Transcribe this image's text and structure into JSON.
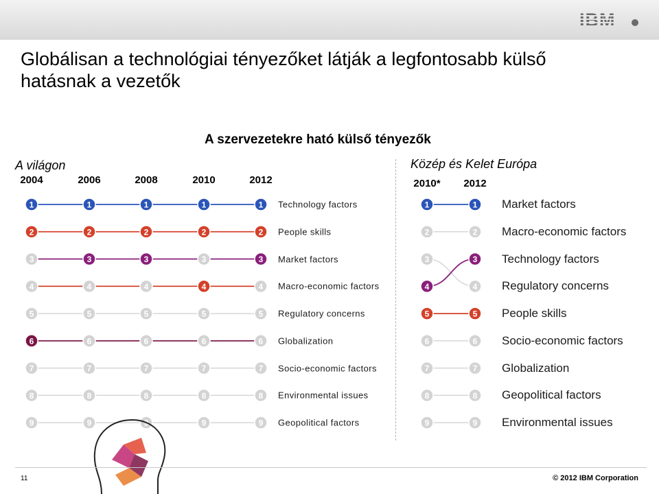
{
  "slide": {
    "title": "Globálisan a technológiai tényezőket látják a legfontosabb külső hatásnak a vezetők",
    "heading": "A szervezetekre ható külső tényezők",
    "page_number": "11",
    "copyright": "© 2012 IBM Corporation",
    "logo": "IBM"
  },
  "global": {
    "region": "A világon",
    "years": [
      "2004",
      "2006",
      "2008",
      "2010",
      "2012"
    ],
    "labels": [
      "Technology factors",
      "People skills",
      "Market factors",
      "Macro-economic factors",
      "Regulatory concerns",
      "Globalization",
      "Socio-economic factors",
      "Environmental issues",
      "Geopolitical factors"
    ]
  },
  "cee": {
    "region": "Közép és Kelet Európa",
    "years": [
      "2010*",
      "2012"
    ],
    "labels": [
      "Market factors",
      "Macro-economic factors",
      "Technology factors",
      "Regulatory concerns",
      "People skills",
      "Socio-economic factors",
      "Globalization",
      "Geopolitical factors",
      "Environmental issues"
    ]
  },
  "colors": {
    "technology": "#2a55b8",
    "people": "#d4412a",
    "market": "#8a1f7a",
    "macro": "#d4412a",
    "globalization": "#7a1545",
    "neutral": "#cfcfcf"
  },
  "chart_data": {
    "type": "bump",
    "ranks": [
      1,
      2,
      3,
      4,
      5,
      6,
      7,
      8,
      9
    ],
    "global_series": [
      {
        "name": "Technology factors",
        "ranks": [
          1,
          1,
          1,
          1,
          1
        ],
        "color": "#2a55b8"
      },
      {
        "name": "People skills",
        "ranks": [
          2,
          2,
          2,
          2,
          2
        ],
        "color": "#d4412a"
      },
      {
        "name": "Market factors",
        "ranks": [
          3,
          3,
          3,
          3,
          3
        ],
        "color": "#8a1f7a"
      },
      {
        "name": "Macro-economic factors",
        "ranks": [
          4,
          4,
          4,
          4,
          4
        ],
        "color": "#d4412a"
      },
      {
        "name": "Regulatory concerns",
        "ranks": [
          5,
          5,
          5,
          5,
          5
        ],
        "color": "#cfcfcf"
      },
      {
        "name": "Globalization",
        "ranks": [
          6,
          6,
          6,
          6,
          6
        ],
        "color": "#7a1545"
      },
      {
        "name": "Socio-economic factors",
        "ranks": [
          7,
          7,
          7,
          7,
          7
        ],
        "color": "#cfcfcf"
      },
      {
        "name": "Environmental issues",
        "ranks": [
          8,
          8,
          8,
          8,
          8
        ],
        "color": "#cfcfcf"
      },
      {
        "name": "Geopolitical factors",
        "ranks": [
          9,
          9,
          9,
          9,
          9
        ],
        "color": "#cfcfcf"
      }
    ],
    "cee_series": [
      {
        "name": "Market factors",
        "ranks": [
          1,
          1
        ],
        "color": "#2a55b8"
      },
      {
        "name": "Macro-economic factors",
        "ranks": [
          2,
          2
        ],
        "color": "#cfcfcf"
      },
      {
        "name": "Technology factors",
        "ranks": [
          4,
          3
        ],
        "color": "#8a1f7a"
      },
      {
        "name": "Regulatory concerns",
        "ranks": [
          3,
          4
        ],
        "color": "#cfcfcf"
      },
      {
        "name": "People skills",
        "ranks": [
          5,
          5
        ],
        "color": "#d4412a"
      },
      {
        "name": "Socio-economic factors",
        "ranks": [
          6,
          6
        ],
        "color": "#cfcfcf"
      },
      {
        "name": "Globalization",
        "ranks": [
          7,
          7
        ],
        "color": "#cfcfcf"
      },
      {
        "name": "Geopolitical factors",
        "ranks": [
          8,
          8
        ],
        "color": "#cfcfcf"
      },
      {
        "name": "Environmental issues",
        "ranks": [
          9,
          9
        ],
        "color": "#cfcfcf"
      }
    ],
    "highlighted_badges": {
      "global": [
        {
          "col": 0,
          "ranks": [
            1,
            2,
            6
          ]
        },
        {
          "col": 1,
          "ranks": [
            1,
            2,
            3
          ]
        },
        {
          "col": 2,
          "ranks": [
            1,
            2,
            3
          ]
        },
        {
          "col": 3,
          "ranks": [
            1,
            2,
            4
          ]
        },
        {
          "col": 4,
          "ranks": [
            1,
            2,
            3
          ]
        }
      ],
      "cee": [
        {
          "col": 0,
          "ranks": [
            1,
            4,
            5
          ]
        },
        {
          "col": 1,
          "ranks": [
            1,
            3,
            5
          ]
        }
      ]
    }
  }
}
